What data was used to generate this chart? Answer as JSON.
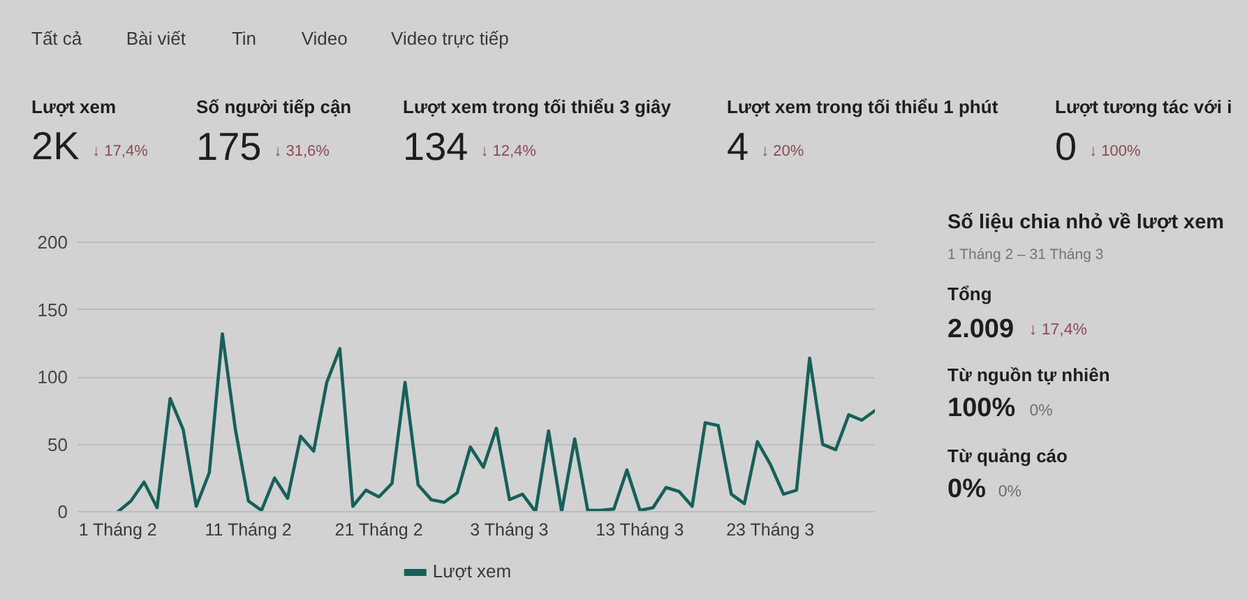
{
  "chart_data": [
    {
      "type": "other",
      "annotations": [
        "Tất cả",
        "Bài viết",
        "Tin",
        "Video",
        "Video trực tiếp"
      ]
    },
    {
      "type": "other",
      "title": "Lượt xem",
      "annotations": [
        "2K",
        "↓ 17,4%"
      ]
    },
    {
      "type": "other",
      "title": "Số người tiếp cận",
      "annotations": [
        "175",
        "↓ 31,6%"
      ]
    },
    {
      "type": "other",
      "title": "Lượt xem trong tối thiểu 3 giây",
      "annotations": [
        "134",
        "↓ 12,4%"
      ]
    },
    {
      "type": "other",
      "title": "Lượt xem trong tối thiểu 1 phút",
      "annotations": [
        "4",
        "↓ 20%"
      ]
    },
    {
      "type": "other",
      "title": "Lượt tương tác với i",
      "annotations": [
        "0",
        "↓ 100%"
      ]
    },
    {
      "type": "line",
      "categories": [
        "1 Tháng 2",
        null,
        null,
        null,
        null,
        null,
        null,
        null,
        null,
        null,
        "11 Tháng 2",
        null,
        null,
        null,
        null,
        null,
        null,
        null,
        null,
        null,
        "21 Tháng 2",
        null,
        null,
        null,
        null,
        null,
        null,
        null,
        null,
        null,
        "3 Tháng 3",
        null,
        null,
        null,
        null,
        null,
        null,
        null,
        null,
        null,
        "13 Tháng 3",
        null,
        null,
        null,
        null,
        null,
        null,
        null,
        null,
        null,
        "23 Tháng 3",
        null,
        null,
        null,
        null,
        null,
        null,
        null,
        null
      ],
      "series": [
        {
          "name": "Lượt xem",
          "color": "#17605a",
          "values": [
            0,
            8,
            22,
            3,
            84,
            61,
            4,
            29,
            132,
            61,
            8,
            1,
            25,
            10,
            56,
            45,
            96,
            121,
            4,
            16,
            11,
            21,
            96,
            20,
            9,
            7,
            14,
            48,
            33,
            62,
            9,
            13,
            0,
            60,
            0,
            54,
            1,
            1,
            2,
            31,
            1,
            3,
            18,
            15,
            4,
            66,
            64,
            13,
            6,
            52,
            35,
            13,
            16,
            114,
            50,
            46,
            72,
            68,
            75
          ]
        }
      ],
      "ylim": [
        0,
        200
      ],
      "yticks": [
        0,
        50,
        100,
        150,
        200
      ],
      "grid": "y",
      "legend": "bottom"
    },
    {
      "type": "other",
      "title": "Số liệu chia nhỏ về lượt xem",
      "subtitle": "1 Tháng 2 – 31 Tháng 3",
      "annotations": [
        "Tổng",
        "2.009",
        "↓ 17,4%",
        "Từ nguồn tự nhiên",
        "100%",
        "0%",
        "Từ quảng cáo",
        "0%",
        "0%"
      ],
      "colors": [
        "#8c4a55",
        "#6e6e6e",
        "#6e6e6e"
      ]
    }
  ]
}
